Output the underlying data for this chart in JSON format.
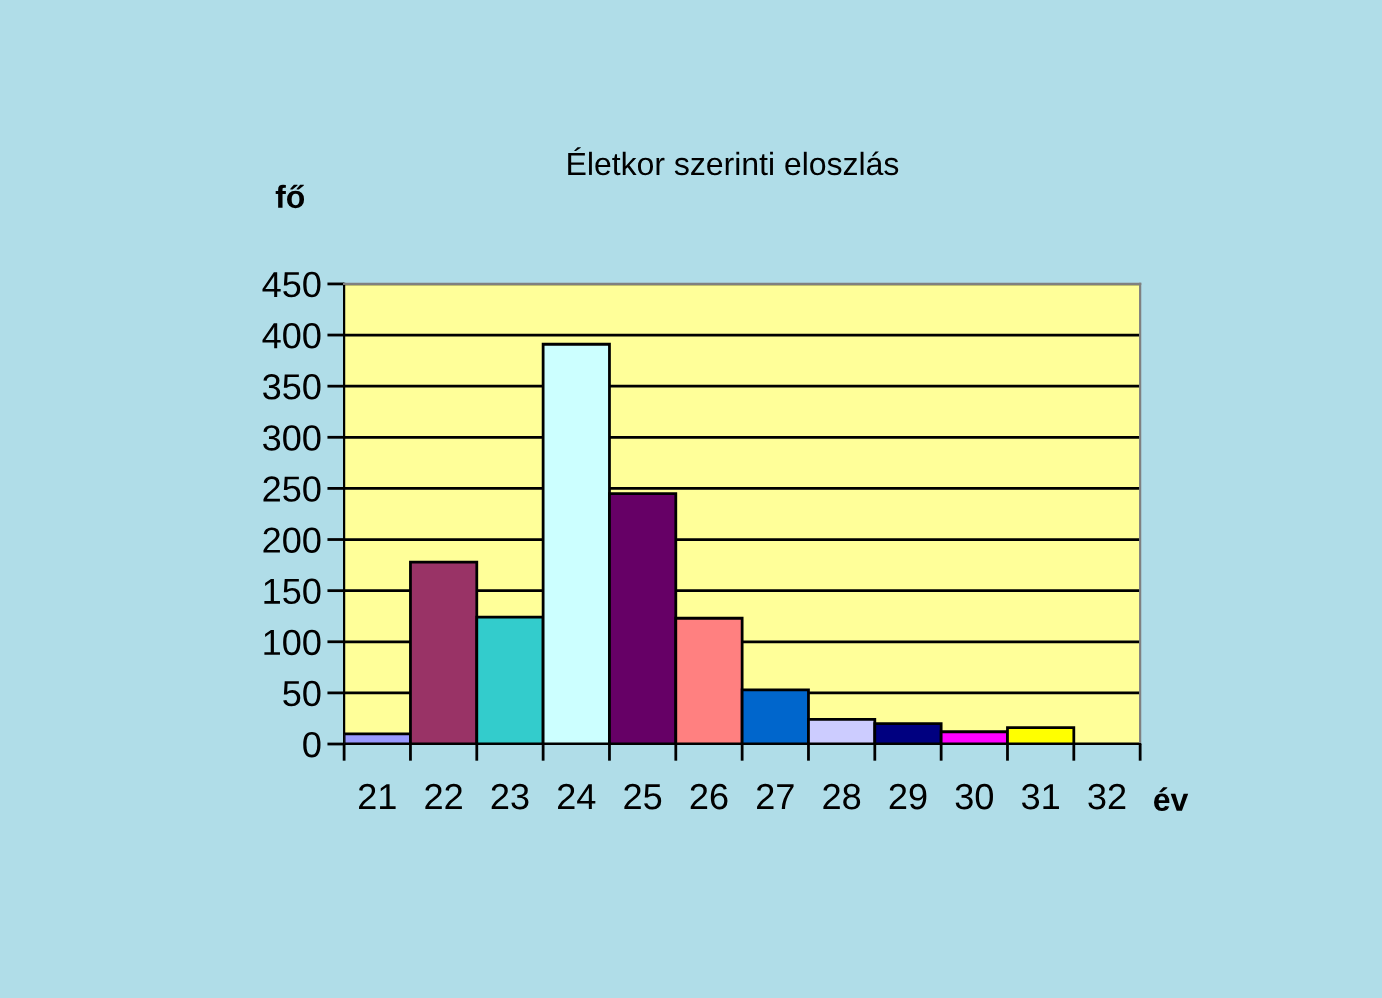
{
  "chart_data": {
    "type": "bar",
    "title": "Életkor szerinti eloszlás",
    "xlabel": "év",
    "ylabel": "fő",
    "categories": [
      "21",
      "22",
      "23",
      "24",
      "25",
      "26",
      "27",
      "28",
      "29",
      "30",
      "31",
      "32"
    ],
    "values": [
      10,
      178,
      124,
      391,
      245,
      123,
      53,
      24,
      20,
      12,
      16,
      null
    ],
    "colors": [
      "#9999ff",
      "#993366",
      "#33cccc",
      "#ccffff",
      "#660066",
      "#ff8080",
      "#0066cc",
      "#ccccff",
      "#000080",
      "#ff00ff",
      "#ffff00",
      null
    ],
    "ylim": [
      0,
      450
    ],
    "yticks": [
      0,
      50,
      100,
      150,
      200,
      250,
      300,
      350,
      400,
      450
    ],
    "grid": "y"
  }
}
